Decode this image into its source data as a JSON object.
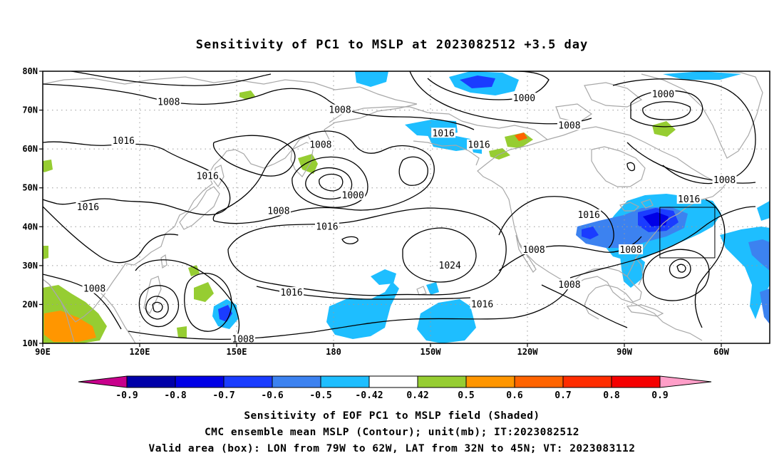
{
  "title": "Sensitivity of PC1 to MSLP at 2023082512 +3.5 day",
  "map": {
    "lat_labels": [
      "80N",
      "70N",
      "60N",
      "50N",
      "40N",
      "30N",
      "20N",
      "10N"
    ],
    "lon_labels": [
      "90E",
      "120E",
      "150E",
      "180",
      "150W",
      "120W",
      "90W",
      "60W"
    ],
    "lon_range": [
      90,
      315
    ],
    "lat_range": [
      10,
      80
    ],
    "grid": "dotted",
    "valid_box": {
      "lon_west": -79,
      "lon_east": -62,
      "lat_south": 32,
      "lat_north": 45
    }
  },
  "contours": {
    "unit": "mb",
    "labels": [
      {
        "text": "1008",
        "lon": 129,
        "lat": 72
      },
      {
        "text": "1008",
        "lon": 182,
        "lat": 70
      },
      {
        "text": "1000",
        "lon": 239,
        "lat": 73
      },
      {
        "text": "1008",
        "lon": 253,
        "lat": 66
      },
      {
        "text": "1000",
        "lon": 282,
        "lat": 74
      },
      {
        "text": "1016",
        "lon": 115,
        "lat": 62
      },
      {
        "text": "1016",
        "lon": 141,
        "lat": 53
      },
      {
        "text": "1016",
        "lon": 104,
        "lat": 45
      },
      {
        "text": "1008",
        "lon": 176,
        "lat": 61
      },
      {
        "text": "1016",
        "lon": 214,
        "lat": 64
      },
      {
        "text": "1016",
        "lon": 225,
        "lat": 61
      },
      {
        "text": "1000",
        "lon": 186,
        "lat": 48
      },
      {
        "text": "1008",
        "lon": 163,
        "lat": 44
      },
      {
        "text": "1016",
        "lon": 178,
        "lat": 40
      },
      {
        "text": "1024",
        "lon": 216,
        "lat": 30
      },
      {
        "text": "1008",
        "lon": 242,
        "lat": 34
      },
      {
        "text": "1016",
        "lon": 259,
        "lat": 43
      },
      {
        "text": "1008",
        "lon": 272,
        "lat": 34
      },
      {
        "text": "1016",
        "lon": 290,
        "lat": 47
      },
      {
        "text": "1008",
        "lon": 301,
        "lat": 52
      },
      {
        "text": "1008",
        "lon": 106,
        "lat": 24
      },
      {
        "text": "1016",
        "lon": 167,
        "lat": 23
      },
      {
        "text": "1016",
        "lon": 226,
        "lat": 20
      },
      {
        "text": "1008",
        "lon": 253,
        "lat": 25
      },
      {
        "text": "1008",
        "lon": 152,
        "lat": 11
      }
    ]
  },
  "colorbar": {
    "labels": [
      "-0.9",
      "-0.8",
      "-0.7",
      "-0.6",
      "-0.5",
      "-0.42",
      "0.42",
      "0.5",
      "0.6",
      "0.7",
      "0.8",
      "0.9"
    ],
    "colors": [
      "#c8008c",
      "#0000a8",
      "#0000e6",
      "#1a3cff",
      "#3c82f0",
      "#1ebeff",
      "#ffffff",
      "#96cd32",
      "#ff9600",
      "#ff6400",
      "#ff2d00",
      "#f50000",
      "#ff9ec8"
    ]
  },
  "footer": {
    "line1": "Sensitivity of EOF PC1 to MSLP field (Shaded)",
    "line2": "CMC ensemble mean MSLP (Contour); unit(mb); IT:2023082512",
    "line3": "Valid area (box): LON from 79W to 62W, LAT from 32N to 45N; VT: 2023083112"
  }
}
